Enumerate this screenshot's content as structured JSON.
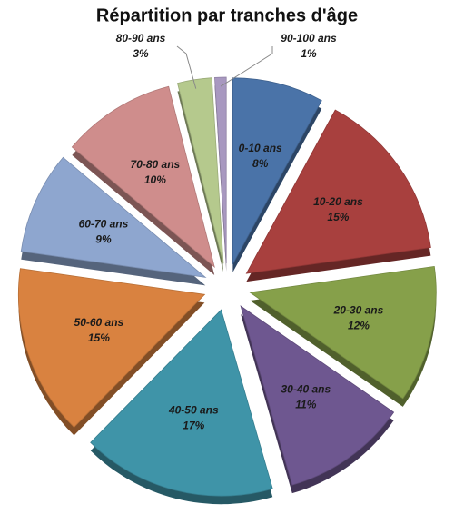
{
  "chart_data": {
    "type": "pie",
    "title": "Répartition par tranches d'âge",
    "categories": [
      "0-10 ans",
      "10-20 ans",
      "20-30 ans",
      "30-40 ans",
      "40-50 ans",
      "50-60 ans",
      "60-70 ans",
      "70-80 ans",
      "80-90 ans",
      "90-100 ans"
    ],
    "values": [
      8,
      15,
      12,
      11,
      17,
      15,
      9,
      10,
      3,
      1
    ],
    "value_labels": [
      "8%",
      "15%",
      "12%",
      "11%",
      "17%",
      "15%",
      "9%",
      "10%",
      "3%",
      "1%"
    ],
    "colors": [
      "#4a73a8",
      "#a8403e",
      "#86a04a",
      "#6e5790",
      "#3f94a8",
      "#d98240",
      "#8ea6cf",
      "#cf8d8c",
      "#b5c98d",
      "#a898c0"
    ]
  }
}
